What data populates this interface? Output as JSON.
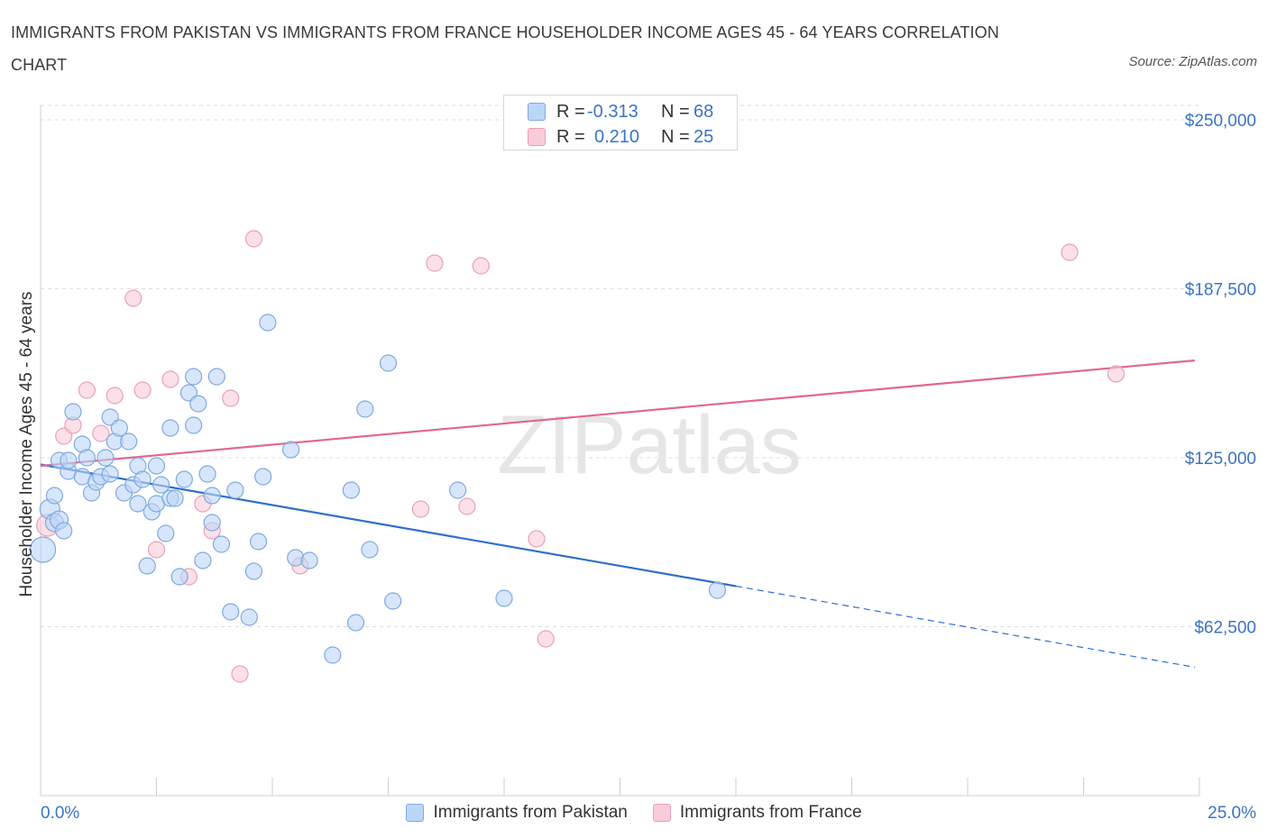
{
  "header": {
    "title": "IMMIGRANTS FROM PAKISTAN VS IMMIGRANTS FROM FRANCE HOUSEHOLDER INCOME AGES 45 - 64 YEARS CORRELATION CHART",
    "source": "Source: ZipAtlas.com"
  },
  "stats": {
    "pakistan": {
      "r_label": "R =",
      "r_value": "-0.313",
      "n_label": "N =",
      "n_value": "68"
    },
    "france": {
      "r_label": "R =",
      "r_value": "0.210",
      "n_label": "N =",
      "n_value": "25"
    }
  },
  "legend": {
    "pakistan": "Immigrants from Pakistan",
    "france": "Immigrants from France"
  },
  "colors": {
    "pakistan_fill": "#bcd6f6",
    "pakistan_stroke": "#7fa9e0",
    "pakistan_line": "#2e6fcc",
    "france_fill": "#f9ccd9",
    "france_stroke": "#eaa0b8",
    "france_line": "#e0688f",
    "tick_text": "#3b73c5",
    "grid": "#dedede"
  },
  "chart_data": {
    "type": "scatter",
    "title": "IMMIGRANTS FROM PAKISTAN VS IMMIGRANTS FROM FRANCE HOUSEHOLDER INCOME AGES 45 - 64 YEARS CORRELATION CHART",
    "xlabel": "",
    "ylabel": "Householder Income Ages 45 - 64 years",
    "xlim": [
      0,
      25
    ],
    "ylim": [
      0,
      250000
    ],
    "x_tick_labels": [
      "0.0%",
      "25.0%"
    ],
    "y_ticks": [
      62500,
      125000,
      187500,
      250000
    ],
    "y_tick_labels": [
      "$62,500",
      "$125,000",
      "$187,500",
      "$250,000"
    ],
    "grid": true,
    "legend_position": "bottom",
    "watermark": "ZIPatlas",
    "series": [
      {
        "name": "Immigrants from Pakistan",
        "points": [
          [
            0.05,
            91000,
            14
          ],
          [
            0.2,
            106000,
            11
          ],
          [
            0.3,
            101000,
            10
          ],
          [
            0.3,
            111000,
            9
          ],
          [
            0.4,
            102000,
            10
          ],
          [
            0.4,
            124000,
            9
          ],
          [
            0.6,
            120000,
            9
          ],
          [
            0.6,
            124000,
            9
          ],
          [
            0.7,
            142000,
            9
          ],
          [
            0.9,
            130000,
            9
          ],
          [
            0.9,
            118000,
            9
          ],
          [
            1.0,
            125000,
            9
          ],
          [
            1.1,
            112000,
            9
          ],
          [
            1.2,
            116000,
            9
          ],
          [
            1.3,
            118000,
            9
          ],
          [
            1.4,
            125000,
            9
          ],
          [
            1.5,
            119000,
            9
          ],
          [
            1.5,
            140000,
            9
          ],
          [
            1.6,
            131000,
            9
          ],
          [
            1.7,
            136000,
            9
          ],
          [
            1.8,
            112000,
            9
          ],
          [
            1.9,
            131000,
            9
          ],
          [
            2.0,
            115000,
            9
          ],
          [
            2.1,
            108000,
            9
          ],
          [
            2.1,
            122000,
            9
          ],
          [
            2.2,
            117000,
            9
          ],
          [
            2.3,
            85000,
            9
          ],
          [
            2.4,
            105000,
            9
          ],
          [
            2.5,
            108000,
            9
          ],
          [
            2.5,
            122000,
            9
          ],
          [
            2.6,
            115000,
            9
          ],
          [
            2.7,
            97000,
            9
          ],
          [
            2.8,
            110000,
            9
          ],
          [
            2.8,
            136000,
            9
          ],
          [
            2.9,
            110000,
            9
          ],
          [
            3.0,
            81000,
            9
          ],
          [
            3.1,
            117000,
            9
          ],
          [
            3.2,
            149000,
            9
          ],
          [
            3.3,
            137000,
            9
          ],
          [
            3.3,
            155000,
            9
          ],
          [
            3.4,
            145000,
            9
          ],
          [
            3.5,
            87000,
            9
          ],
          [
            3.6,
            119000,
            9
          ],
          [
            3.7,
            111000,
            9
          ],
          [
            3.7,
            101000,
            9
          ],
          [
            3.8,
            155000,
            9
          ],
          [
            3.9,
            93000,
            9
          ],
          [
            4.1,
            68000,
            9
          ],
          [
            4.2,
            113000,
            9
          ],
          [
            4.5,
            66000,
            9
          ],
          [
            4.6,
            83000,
            9
          ],
          [
            4.7,
            94000,
            9
          ],
          [
            4.8,
            118000,
            9
          ],
          [
            4.9,
            175000,
            9
          ],
          [
            5.4,
            128000,
            9
          ],
          [
            5.5,
            88000,
            9
          ],
          [
            5.8,
            87000,
            9
          ],
          [
            6.3,
            52000,
            9
          ],
          [
            6.7,
            113000,
            9
          ],
          [
            6.8,
            64000,
            9
          ],
          [
            7.0,
            143000,
            9
          ],
          [
            7.1,
            91000,
            9
          ],
          [
            7.5,
            160000,
            9
          ],
          [
            7.6,
            72000,
            9
          ],
          [
            9.0,
            113000,
            9
          ],
          [
            10.0,
            73000,
            9
          ],
          [
            14.6,
            76000,
            9
          ],
          [
            0.5,
            98000,
            9
          ]
        ],
        "trend": {
          "x": [
            0,
            15
          ],
          "y": [
            122500,
            77500
          ]
        },
        "trend_dashed": {
          "x": [
            15,
            24.9
          ],
          "y": [
            77500,
            47500
          ]
        }
      },
      {
        "name": "Immigrants from France",
        "points": [
          [
            0.15,
            100000,
            12
          ],
          [
            0.5,
            133000,
            9
          ],
          [
            0.7,
            137000,
            9
          ],
          [
            1.0,
            150000,
            9
          ],
          [
            1.3,
            134000,
            9
          ],
          [
            1.6,
            148000,
            9
          ],
          [
            2.0,
            184000,
            9
          ],
          [
            2.2,
            150000,
            9
          ],
          [
            2.5,
            91000,
            9
          ],
          [
            2.8,
            154000,
            9
          ],
          [
            3.2,
            81000,
            9
          ],
          [
            3.5,
            108000,
            9
          ],
          [
            3.7,
            98000,
            9
          ],
          [
            4.1,
            147000,
            9
          ],
          [
            4.3,
            45000,
            9
          ],
          [
            4.6,
            206000,
            9
          ],
          [
            5.6,
            85000,
            9
          ],
          [
            8.2,
            106000,
            9
          ],
          [
            8.5,
            197000,
            9
          ],
          [
            9.2,
            107000,
            9
          ],
          [
            9.5,
            196000,
            9
          ],
          [
            10.7,
            95000,
            9
          ],
          [
            10.9,
            58000,
            9
          ],
          [
            22.2,
            201000,
            9
          ],
          [
            23.2,
            156000,
            9
          ]
        ],
        "trend": {
          "x": [
            0,
            24.9
          ],
          "y": [
            122000,
            161000
          ]
        }
      }
    ]
  }
}
